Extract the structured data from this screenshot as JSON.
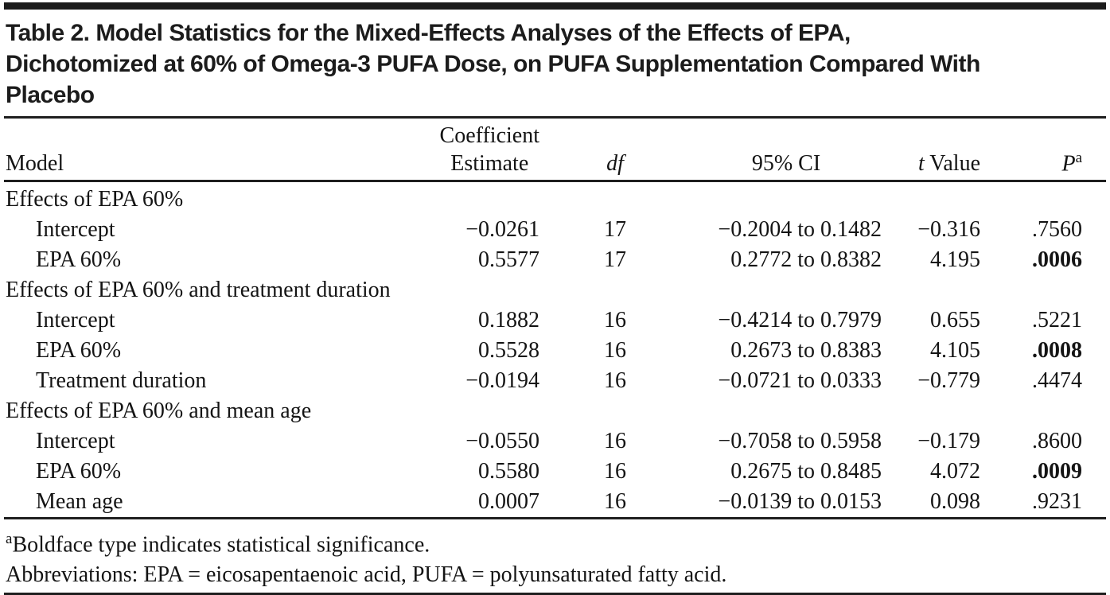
{
  "title": {
    "line1": "Table 2. Model Statistics for the Mixed-Effects Analyses of the Effects of EPA,",
    "line2": "Dichotomized at 60% of Omega-3 PUFA Dose, on PUFA Supplementation Compared With",
    "line3": "Placebo"
  },
  "table": {
    "columns": {
      "model": "Model",
      "coef_line1": "Coefficient",
      "coef_line2": "Estimate",
      "df": "df",
      "ci": "95% CI",
      "t_italic": "t",
      "t_rest": " Value",
      "p_base": "P",
      "p_sup": "a"
    },
    "rows": [
      {
        "type": "section",
        "model": "Effects of EPA 60%",
        "coef": "",
        "df": "",
        "ci": "",
        "t": "",
        "p": "",
        "significant": false
      },
      {
        "type": "data",
        "model": "Intercept",
        "coef": "−0.0261",
        "df": "17",
        "ci": "−0.2004 to 0.1482",
        "t": "−0.316",
        "p": ".7560",
        "significant": false
      },
      {
        "type": "data",
        "model": "EPA 60%",
        "coef": "0.5577",
        "df": "17",
        "ci": "0.2772 to 0.8382",
        "t": "4.195",
        "p": ".0006",
        "significant": true
      },
      {
        "type": "section",
        "model": "Effects of EPA 60% and treatment duration",
        "coef": "",
        "df": "",
        "ci": "",
        "t": "",
        "p": "",
        "significant": false
      },
      {
        "type": "data",
        "model": "Intercept",
        "coef": "0.1882",
        "df": "16",
        "ci": "−0.4214 to 0.7979",
        "t": "0.655",
        "p": ".5221",
        "significant": false
      },
      {
        "type": "data",
        "model": "EPA 60%",
        "coef": "0.5528",
        "df": "16",
        "ci": "0.2673 to 0.8383",
        "t": "4.105",
        "p": ".0008",
        "significant": true
      },
      {
        "type": "data",
        "model": "Treatment duration",
        "coef": "−0.0194",
        "df": "16",
        "ci": "−0.0721 to 0.0333",
        "t": "−0.779",
        "p": ".4474",
        "significant": false
      },
      {
        "type": "section",
        "model": "Effects of EPA 60% and mean age",
        "coef": "",
        "df": "",
        "ci": "",
        "t": "",
        "p": "",
        "significant": false
      },
      {
        "type": "data",
        "model": "Intercept",
        "coef": "−0.0550",
        "df": "16",
        "ci": "−0.7058 to 0.5958",
        "t": "−0.179",
        "p": ".8600",
        "significant": false
      },
      {
        "type": "data",
        "model": "EPA 60%",
        "coef": "0.5580",
        "df": "16",
        "ci": "0.2675 to 0.8485",
        "t": "4.072",
        "p": ".0009",
        "significant": true
      },
      {
        "type": "data",
        "model": "Mean age",
        "coef": "0.0007",
        "df": "16",
        "ci": "−0.0139 to 0.0153",
        "t": "0.098",
        "p": ".9231",
        "significant": false
      }
    ]
  },
  "footnotes": {
    "note_a_sup": "a",
    "note_a_text": "Boldface type indicates statistical significance.",
    "abbreviations": "Abbreviations: EPA = eicosapentaenoic acid, PUFA = polyunsaturated fatty acid."
  },
  "colors": {
    "rule": "#1f1f1f",
    "text": "#141414",
    "background": "#ffffff"
  }
}
